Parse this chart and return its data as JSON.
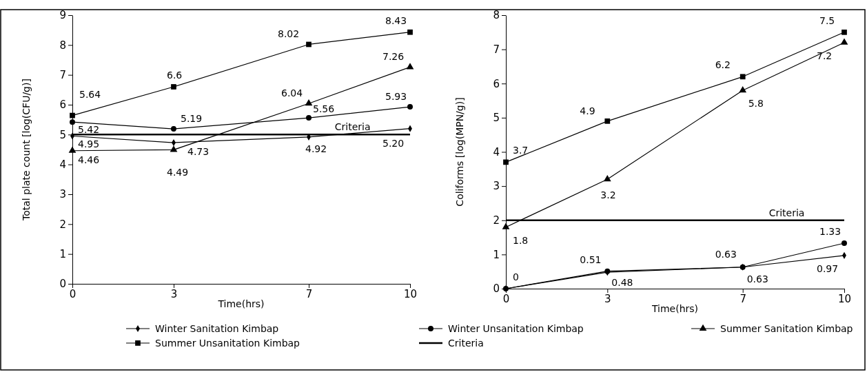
{
  "chart_data": [
    {
      "type": "line",
      "xlabel": "Time(hrs)",
      "ylabel": "Total plate count [log(CFU/g)]",
      "x": [
        0,
        3,
        7,
        10
      ],
      "xlim": [
        0,
        10
      ],
      "xticks": [
        0,
        3,
        7,
        10
      ],
      "ylim": [
        0,
        9
      ],
      "yticks": [
        0,
        1,
        2,
        3,
        4,
        5,
        6,
        7,
        8,
        9
      ],
      "grid": false,
      "legend": "bottom",
      "line_style": "solid",
      "ref_lines": [
        {
          "axis": "y",
          "value": 5,
          "label": "Criteria",
          "color": "#000000"
        }
      ],
      "series": [
        {
          "name": "Winter Sanitation Kimbap",
          "color": "#000000",
          "marker": "diamond",
          "values": [
            4.95,
            4.73,
            4.92,
            5.2
          ],
          "value_labels": [
            "4.95",
            "4.73",
            "4.92",
            "5.20"
          ]
        },
        {
          "name": "Winter Unsanitation Kimbap",
          "color": "#000000",
          "marker": "circle",
          "values": [
            5.42,
            5.19,
            5.56,
            5.93
          ],
          "value_labels": [
            "5.42",
            "5.19",
            "5.56",
            "5.93"
          ]
        },
        {
          "name": "Summer Sanitation Kimbap",
          "color": "#000000",
          "marker": "triangle",
          "values": [
            4.46,
            4.49,
            6.04,
            7.26
          ],
          "value_labels": [
            "4.46",
            "4.49",
            "6.04",
            "7.26"
          ]
        },
        {
          "name": "Summer Unsanitation Kimbap",
          "color": "#000000",
          "marker": "square",
          "values": [
            5.64,
            6.6,
            8.02,
            8.43
          ],
          "value_labels": [
            "5.64",
            "6.6",
            "8.02",
            "8.43"
          ]
        }
      ]
    },
    {
      "type": "line",
      "xlabel": "Time(hrs)",
      "ylabel": "Coliforms [log(MPN/g)]",
      "x": [
        0,
        3,
        7,
        10
      ],
      "xlim": [
        0,
        10
      ],
      "xticks": [
        0,
        3,
        7,
        10
      ],
      "ylim": [
        0,
        8
      ],
      "yticks": [
        0,
        1,
        2,
        3,
        4,
        5,
        6,
        7,
        8
      ],
      "grid": false,
      "legend": false,
      "line_style": "solid",
      "ref_lines": [
        {
          "axis": "y",
          "value": 2,
          "label": "Criteria",
          "color": "#000000"
        }
      ],
      "series": [
        {
          "color": "#000000",
          "marker": "diamond",
          "values": [
            0,
            0.48,
            0.63,
            0.97
          ],
          "value_labels": [
            null,
            "0.48",
            "0.63",
            "0.97"
          ]
        },
        {
          "color": "#000000",
          "marker": "circle",
          "values": [
            0,
            0.51,
            0.63,
            1.33
          ],
          "value_labels": [
            "0",
            "0.51",
            "0.63",
            "1.33"
          ]
        },
        {
          "color": "#000000",
          "marker": "triangle",
          "values": [
            1.8,
            3.2,
            5.8,
            7.2
          ],
          "value_labels": [
            "1.8",
            "3.2",
            "5.8",
            "7.2"
          ]
        },
        {
          "color": "#000000",
          "marker": "square",
          "values": [
            3.7,
            4.9,
            6.2,
            7.5
          ],
          "value_labels": [
            "3.7",
            "4.9",
            "6.2",
            "7.5"
          ]
        }
      ]
    }
  ]
}
